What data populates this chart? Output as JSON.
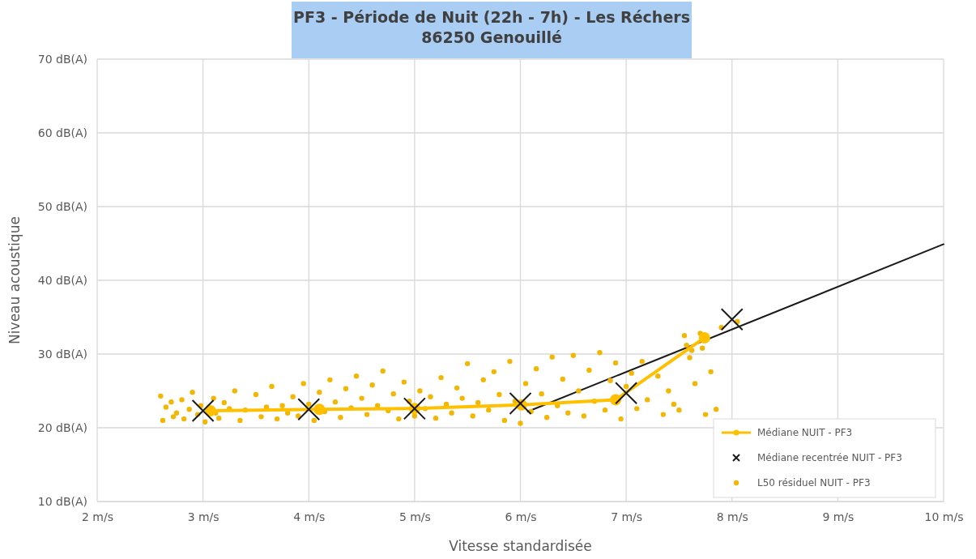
{
  "chart_data": {
    "type": "scatter",
    "title": "PF3 - Période de Nuit (22h - 7h) - Les Réchers\n86250 Genouillé",
    "xlabel": "Vitesse standardisée",
    "ylabel": "Niveau acoustique",
    "xlim": [
      2,
      10
    ],
    "xticks": [
      {
        "value": 2,
        "label": "2 m/s"
      },
      {
        "value": 3,
        "label": "3 m/s"
      },
      {
        "value": 4,
        "label": "4 m/s"
      },
      {
        "value": 5,
        "label": "5 m/s"
      },
      {
        "value": 6,
        "label": "6 m/s"
      },
      {
        "value": 7,
        "label": "7 m/s"
      },
      {
        "value": 8,
        "label": "8 m/s"
      },
      {
        "value": 9,
        "label": "9 m/s"
      },
      {
        "value": 10,
        "label": "10 m/s"
      }
    ],
    "ylim": [
      10,
      70
    ],
    "yticks": [
      {
        "value": 10,
        "label": "10 dB(A)"
      },
      {
        "value": 20,
        "label": "20 dB(A)"
      },
      {
        "value": 30,
        "label": "30 dB(A)"
      },
      {
        "value": 40,
        "label": "40 dB(A)"
      },
      {
        "value": 50,
        "label": "50 dB(A)"
      },
      {
        "value": 60,
        "label": "60 dB(A)"
      },
      {
        "value": 70,
        "label": "70 dB(A)"
      }
    ],
    "grid": true,
    "legend": "bottom right",
    "series": [
      {
        "name": "Médiane NUIT - PF3",
        "type": "line",
        "marker": "circle",
        "line_style": "solid",
        "color": "#ffc000",
        "x": [
          3.07,
          4.1,
          5.0,
          6.01,
          6.9,
          7.74
        ],
        "values": [
          22.3,
          22.5,
          22.6,
          23.1,
          23.8,
          32.2
        ]
      },
      {
        "name": "Médiane recentrée NUIT - PF3",
        "type": "scatter",
        "marker": "cross",
        "color": "#1a1a1a",
        "x": [
          3,
          4,
          5,
          6,
          7,
          8
        ],
        "values": [
          22.3,
          22.5,
          22.6,
          23.3,
          24.7,
          34.7
        ]
      },
      {
        "name": "L50 résiduel NUIT - PF3",
        "marker": "circle",
        "color": "#f2b705",
        "x": [
          2.6,
          2.62,
          2.65,
          2.7,
          2.72,
          2.75,
          2.8,
          2.82,
          2.87,
          2.9,
          2.95,
          2.98,
          3.02,
          3.1,
          3.12,
          3.15,
          3.2,
          3.25,
          3.3,
          3.35,
          3.4,
          3.5,
          3.55,
          3.6,
          3.65,
          3.7,
          3.75,
          3.8,
          3.85,
          3.9,
          3.95,
          4.0,
          4.05,
          4.1,
          4.15,
          4.2,
          4.25,
          4.3,
          4.35,
          4.4,
          4.45,
          4.5,
          4.55,
          4.6,
          4.65,
          4.7,
          4.75,
          4.8,
          4.85,
          4.9,
          4.95,
          5.0,
          5.05,
          5.1,
          5.15,
          5.2,
          5.25,
          5.3,
          5.35,
          5.4,
          5.45,
          5.5,
          5.55,
          5.6,
          5.65,
          5.7,
          5.75,
          5.8,
          5.85,
          5.9,
          5.95,
          6.0,
          6.05,
          6.1,
          6.15,
          6.2,
          6.25,
          6.3,
          6.35,
          6.4,
          6.45,
          6.5,
          6.55,
          6.6,
          6.65,
          6.7,
          6.75,
          6.8,
          6.85,
          6.9,
          6.95,
          7.0,
          7.05,
          7.1,
          7.15,
          7.2,
          7.3,
          7.35,
          7.4,
          7.45,
          7.5,
          7.55,
          7.57,
          7.6,
          7.62,
          7.65,
          7.7,
          7.72,
          7.75,
          7.8,
          7.85,
          7.9,
          8.05
        ],
        "values": [
          24.3,
          21,
          22.8,
          23.5,
          21.5,
          22,
          23.8,
          21.2,
          22.5,
          24.8,
          21.8,
          23,
          20.8,
          24,
          22,
          21.3,
          23.4,
          22.6,
          25,
          21,
          22.4,
          24.5,
          21.5,
          22.8,
          25.6,
          21.2,
          23,
          22,
          24.2,
          21.6,
          26,
          23.2,
          21,
          24.8,
          22.2,
          26.5,
          23.5,
          21.4,
          25.3,
          22.7,
          27,
          24,
          21.8,
          25.8,
          23,
          27.7,
          22.3,
          24.6,
          21.2,
          26.2,
          23.6,
          21.6,
          25,
          22.6,
          24.2,
          21.3,
          26.8,
          23.2,
          22,
          25.4,
          24,
          28.7,
          21.6,
          23.4,
          26.5,
          22.4,
          27.6,
          24.5,
          21,
          29,
          23.6,
          20.6,
          26,
          22.2,
          28,
          24.6,
          21.4,
          29.6,
          23,
          26.6,
          22,
          29.8,
          25,
          21.6,
          27.8,
          23.6,
          30.2,
          22.4,
          26.4,
          28.8,
          21.2,
          25.6,
          27.4,
          22.6,
          29,
          23.8,
          27,
          21.8,
          25,
          23.2,
          22.4,
          32.5,
          31.2,
          29.5,
          30.5,
          26,
          32.8,
          30.8,
          21.8,
          27.6,
          22.5,
          33.6,
          34.4
        ]
      },
      {
        "type": "line",
        "color": "#1a1a1a",
        "marker": "none",
        "line_style": "solid",
        "x": [
          6.07,
          10
        ],
        "values": [
          22.2,
          44.9
        ]
      }
    ]
  }
}
